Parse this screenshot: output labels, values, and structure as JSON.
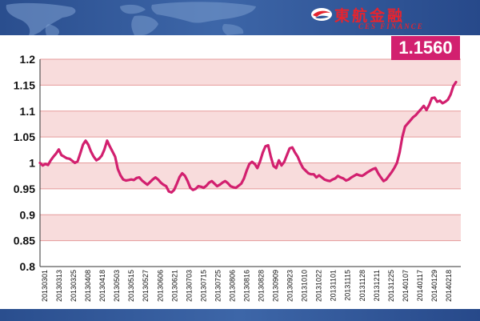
{
  "brand": {
    "name_cn": "東航金融",
    "name_en": "CES FINANCE"
  },
  "badge": {
    "value": "1.1560",
    "color": "#d2206f"
  },
  "colors": {
    "line": "#d2206f",
    "band": "#f8dcdc",
    "header": "#2f5597"
  },
  "chart_data": {
    "type": "line",
    "title": "",
    "xlabel": "",
    "ylabel": "",
    "ylim": [
      0.8,
      1.2
    ],
    "yticks": [
      "0.8",
      "0.85",
      "0.9",
      "0.95",
      "1",
      "1.05",
      "1.1",
      "1.15",
      "1.2"
    ],
    "grid": true,
    "x_tick_labels": [
      "20130301",
      "20130313",
      "20130325",
      "20130408",
      "20130418",
      "20130503",
      "20130515",
      "20130527",
      "20130606",
      "20130621",
      "20130703",
      "20130715",
      "20130725",
      "20130806",
      "20130816",
      "20130828",
      "20130909",
      "20130923",
      "20131010",
      "20131022",
      "20131101",
      "20131115",
      "20131128",
      "20131211",
      "20131225",
      "20140107",
      "20140117",
      "20140129",
      "20140218"
    ],
    "series": [
      {
        "values": [
          1.0,
          0.995,
          0.998,
          0.996,
          1.005,
          1.012,
          1.018,
          1.026,
          1.015,
          1.012,
          1.009,
          1.008,
          1.004,
          1.0,
          1.003,
          1.018,
          1.035,
          1.043,
          1.035,
          1.022,
          1.012,
          1.005,
          1.008,
          1.014,
          1.026,
          1.043,
          1.032,
          1.022,
          1.012,
          0.988,
          0.976,
          0.968,
          0.966,
          0.967,
          0.968,
          0.967,
          0.971,
          0.972,
          0.966,
          0.962,
          0.958,
          0.963,
          0.968,
          0.972,
          0.968,
          0.962,
          0.958,
          0.955,
          0.945,
          0.943,
          0.948,
          0.96,
          0.973,
          0.98,
          0.975,
          0.965,
          0.952,
          0.948,
          0.95,
          0.955,
          0.954,
          0.952,
          0.956,
          0.962,
          0.965,
          0.96,
          0.955,
          0.958,
          0.962,
          0.965,
          0.961,
          0.955,
          0.953,
          0.952,
          0.956,
          0.96,
          0.97,
          0.985,
          0.998,
          1.002,
          0.998,
          0.99,
          1.003,
          1.02,
          1.032,
          1.034,
          1.012,
          0.994,
          0.99,
          1.005,
          0.995,
          1.002,
          1.015,
          1.028,
          1.03,
          1.02,
          1.012,
          1.0,
          0.99,
          0.985,
          0.98,
          0.978,
          0.978,
          0.972,
          0.976,
          0.972,
          0.968,
          0.966,
          0.965,
          0.968,
          0.97,
          0.975,
          0.972,
          0.97,
          0.966,
          0.968,
          0.972,
          0.975,
          0.978,
          0.976,
          0.975,
          0.978,
          0.982,
          0.985,
          0.988,
          0.99,
          0.98,
          0.972,
          0.965,
          0.968,
          0.975,
          0.982,
          0.99,
          1.0,
          1.02,
          1.05,
          1.07,
          1.076,
          1.082,
          1.088,
          1.092,
          1.098,
          1.104,
          1.11,
          1.102,
          1.112,
          1.125,
          1.126,
          1.118,
          1.12,
          1.115,
          1.118,
          1.122,
          1.132,
          1.148,
          1.156
        ]
      }
    ]
  }
}
